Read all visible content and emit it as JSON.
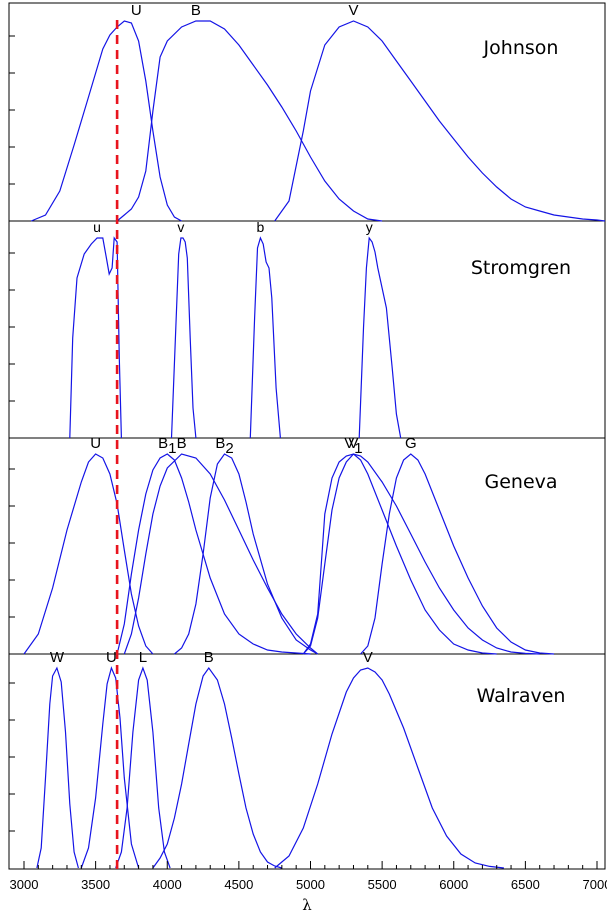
{
  "chart_data": {
    "type": "line",
    "xlabel": "λ",
    "xlim": [
      2950,
      7100
    ],
    "ylim": [
      0,
      1.05
    ],
    "x_ticks": [
      3000,
      3500,
      4000,
      4500,
      5000,
      5500,
      6000,
      6500,
      7000
    ],
    "reference_line": {
      "x": 3650,
      "color": "#e8141e",
      "style": "dashed"
    },
    "curve_color": "#1414e6",
    "panels": [
      {
        "title": "Johnson",
        "series": [
          {
            "name": "U",
            "x": [
              3050,
              3150,
              3250,
              3350,
              3450,
              3550,
              3600,
              3650,
              3700,
              3750,
              3800,
              3850,
              3900,
              3950,
              4000,
              4050,
              4100
            ],
            "y": [
              0,
              0.03,
              0.15,
              0.38,
              0.62,
              0.86,
              0.93,
              0.97,
              1.0,
              0.99,
              0.9,
              0.7,
              0.45,
              0.22,
              0.08,
              0.02,
              0
            ]
          },
          {
            "name": "B",
            "x": [
              3650,
              3700,
              3750,
              3800,
              3850,
              3900,
              3950,
              3975,
              4000,
              4100,
              4200,
              4300,
              4400,
              4500,
              4600,
              4700,
              4800,
              4900,
              5000,
              5100,
              5200,
              5300,
              5400,
              5500
            ],
            "y": [
              0,
              0.03,
              0.06,
              0.12,
              0.25,
              0.55,
              0.82,
              0.86,
              0.9,
              0.97,
              1.0,
              1.0,
              0.96,
              0.88,
              0.78,
              0.68,
              0.57,
              0.45,
              0.32,
              0.2,
              0.11,
              0.05,
              0.01,
              0
            ]
          },
          {
            "name": "V",
            "x": [
              4750,
              4850,
              4950,
              5000,
              5100,
              5200,
              5300,
              5400,
              5500,
              5600,
              5700,
              5800,
              5900,
              6000,
              6100,
              6200,
              6300,
              6400,
              6500,
              6600,
              6700,
              6800,
              6900,
              7000,
              7100
            ],
            "y": [
              0,
              0.1,
              0.45,
              0.65,
              0.88,
              0.97,
              1.0,
              0.97,
              0.9,
              0.8,
              0.7,
              0.6,
              0.5,
              0.41,
              0.32,
              0.24,
              0.17,
              0.11,
              0.07,
              0.05,
              0.03,
              0.02,
              0.01,
              0.005,
              0
            ]
          }
        ]
      },
      {
        "title": "Stromgren",
        "series": [
          {
            "name": "u",
            "x": [
              3320,
              3340,
              3370,
              3420,
              3470,
              3510,
              3550,
              3575,
              3595,
              3615,
              3630,
              3650,
              3665,
              3680
            ],
            "y": [
              0,
              0.5,
              0.8,
              0.92,
              0.97,
              1.0,
              1.0,
              0.9,
              0.82,
              0.85,
              1.0,
              0.98,
              0.4,
              0
            ]
          },
          {
            "name": "v",
            "x": [
              4030,
              4060,
              4080,
              4095,
              4110,
              4125,
              4140,
              4160,
              4180,
              4200
            ],
            "y": [
              0,
              0.55,
              0.92,
              1.0,
              1.0,
              0.98,
              0.9,
              0.5,
              0.15,
              0
            ]
          },
          {
            "name": "b",
            "x": [
              4580,
              4610,
              4630,
              4650,
              4670,
              4690,
              4710,
              4730,
              4760,
              4790
            ],
            "y": [
              0,
              0.6,
              0.95,
              1.0,
              0.97,
              0.88,
              0.85,
              0.7,
              0.25,
              0
            ]
          },
          {
            "name": "y",
            "x": [
              5340,
              5370,
              5390,
              5410,
              5430,
              5450,
              5470,
              5500,
              5530,
              5570,
              5600,
              5630
            ],
            "y": [
              0,
              0.55,
              0.85,
              1.0,
              0.98,
              0.93,
              0.85,
              0.75,
              0.65,
              0.35,
              0.12,
              0
            ]
          }
        ]
      },
      {
        "title": "Geneva",
        "series": [
          {
            "name": "U",
            "x": [
              3000,
              3100,
              3200,
              3300,
              3400,
              3450,
              3500,
              3550,
              3600,
              3650,
              3700,
              3750,
              3800,
              3850,
              3900
            ],
            "y": [
              0,
              0.1,
              0.33,
              0.62,
              0.86,
              0.96,
              1.0,
              0.98,
              0.9,
              0.75,
              0.52,
              0.3,
              0.14,
              0.04,
              0
            ]
          },
          {
            "name": "B_1",
            "label_main": "B",
            "label_sub": "1",
            "x": [
              3650,
              3700,
              3750,
              3800,
              3850,
              3900,
              3950,
              4000,
              4050,
              4100,
              4150,
              4200,
              4300,
              4400,
              4500,
              4600,
              4700,
              4800,
              4900,
              5000
            ],
            "y": [
              0,
              0.15,
              0.4,
              0.62,
              0.8,
              0.92,
              0.98,
              1.0,
              0.97,
              0.88,
              0.76,
              0.62,
              0.38,
              0.2,
              0.1,
              0.05,
              0.02,
              0.01,
              0.005,
              0
            ]
          },
          {
            "name": "B",
            "x": [
              3700,
              3750,
              3800,
              3850,
              3900,
              3950,
              4000,
              4100,
              4200,
              4300,
              4400,
              4500,
              4600,
              4700,
              4800,
              4900,
              5000,
              5050
            ],
            "y": [
              0,
              0.1,
              0.28,
              0.5,
              0.7,
              0.84,
              0.93,
              1.0,
              0.98,
              0.9,
              0.77,
              0.62,
              0.47,
              0.33,
              0.2,
              0.1,
              0.03,
              0
            ]
          },
          {
            "name": "B_2",
            "label_main": "B",
            "label_sub": "2",
            "x": [
              4050,
              4100,
              4150,
              4200,
              4250,
              4300,
              4350,
              4400,
              4450,
              4500,
              4550,
              4600,
              4700,
              4800,
              4900,
              5000,
              5050
            ],
            "y": [
              0,
              0.03,
              0.1,
              0.25,
              0.5,
              0.78,
              0.95,
              1.0,
              0.98,
              0.9,
              0.76,
              0.6,
              0.35,
              0.18,
              0.07,
              0.02,
              0
            ]
          },
          {
            "name": "V_1",
            "label_main": "V",
            "label_sub": "1",
            "x": [
              4950,
              5000,
              5050,
              5080,
              5100,
              5150,
              5200,
              5250,
              5300,
              5350,
              5400,
              5500,
              5600,
              5700,
              5800,
              5900,
              6000,
              6100,
              6200,
              6300
            ],
            "y": [
              0,
              0.05,
              0.2,
              0.5,
              0.7,
              0.88,
              0.96,
              0.99,
              1.0,
              0.97,
              0.9,
              0.72,
              0.54,
              0.37,
              0.22,
              0.12,
              0.05,
              0.02,
              0.005,
              0
            ]
          },
          {
            "name": "V",
            "x": [
              4950,
              5000,
              5050,
              5100,
              5150,
              5200,
              5250,
              5300,
              5350,
              5400,
              5500,
              5600,
              5700,
              5800,
              5900,
              6000,
              6100,
              6200,
              6300,
              6400,
              6500,
              6600
            ],
            "y": [
              0,
              0.04,
              0.18,
              0.45,
              0.72,
              0.88,
              0.96,
              1.0,
              0.99,
              0.96,
              0.86,
              0.74,
              0.6,
              0.46,
              0.33,
              0.22,
              0.13,
              0.07,
              0.03,
              0.01,
              0.003,
              0
            ]
          },
          {
            "name": "G",
            "x": [
              5350,
              5400,
              5450,
              5500,
              5550,
              5600,
              5650,
              5700,
              5750,
              5800,
              5900,
              6000,
              6100,
              6200,
              6300,
              6400,
              6500,
              6600,
              6700
            ],
            "y": [
              0,
              0.04,
              0.18,
              0.45,
              0.7,
              0.88,
              0.97,
              1.0,
              0.97,
              0.9,
              0.72,
              0.54,
              0.38,
              0.24,
              0.13,
              0.06,
              0.02,
              0.005,
              0
            ]
          }
        ]
      },
      {
        "title": "Walraven",
        "series": [
          {
            "name": "W",
            "x": [
              3090,
              3120,
              3150,
              3180,
              3200,
              3230,
              3260,
              3290,
              3320,
              3350,
              3380
            ],
            "y": [
              0,
              0.1,
              0.45,
              0.82,
              0.96,
              1.0,
              0.93,
              0.68,
              0.32,
              0.08,
              0
            ]
          },
          {
            "name": "U",
            "x": [
              3400,
              3450,
              3500,
              3550,
              3580,
              3610,
              3640,
              3670,
              3700,
              3750,
              3800
            ],
            "y": [
              0,
              0.1,
              0.35,
              0.72,
              0.92,
              1.0,
              0.95,
              0.75,
              0.45,
              0.12,
              0
            ]
          },
          {
            "name": "L",
            "x": [
              3640,
              3680,
              3720,
              3760,
              3800,
              3830,
              3860,
              3900,
              3940,
              3980,
              4020
            ],
            "y": [
              0,
              0.08,
              0.3,
              0.68,
              0.94,
              1.0,
              0.94,
              0.68,
              0.3,
              0.08,
              0
            ]
          },
          {
            "name": "B",
            "x": [
              3900,
              3950,
              4000,
              4050,
              4100,
              4150,
              4200,
              4250,
              4290,
              4350,
              4400,
              4450,
              4500,
              4550,
              4600,
              4650,
              4700,
              4750,
              4800
            ],
            "y": [
              0,
              0.05,
              0.12,
              0.25,
              0.42,
              0.62,
              0.82,
              0.96,
              1.0,
              0.94,
              0.82,
              0.65,
              0.47,
              0.3,
              0.17,
              0.08,
              0.03,
              0.01,
              0
            ]
          },
          {
            "name": "V",
            "x": [
              4750,
              4850,
              4950,
              5050,
              5150,
              5250,
              5300,
              5350,
              5400,
              5450,
              5500,
              5550,
              5650,
              5750,
              5850,
              5950,
              6050,
              6150,
              6250,
              6350
            ],
            "y": [
              0,
              0.06,
              0.2,
              0.42,
              0.67,
              0.88,
              0.95,
              0.99,
              1.0,
              0.98,
              0.94,
              0.87,
              0.7,
              0.5,
              0.3,
              0.16,
              0.07,
              0.025,
              0.008,
              0
            ]
          }
        ]
      }
    ]
  }
}
